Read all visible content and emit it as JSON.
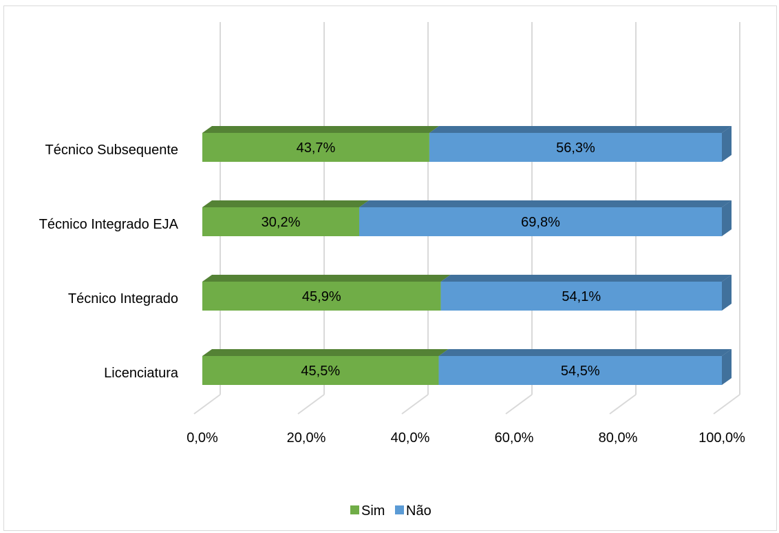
{
  "chart_data": {
    "type": "bar",
    "orientation": "horizontal",
    "stacked": true,
    "three_d": true,
    "categories": [
      "Licenciatura",
      "Técnico Integrado",
      "Técnico Integrado EJA",
      "Técnico Subsequente"
    ],
    "series": [
      {
        "name": "Sim",
        "values": [
          45.5,
          45.9,
          30.2,
          43.7
        ],
        "labels": [
          "45,5%",
          "45,9%",
          "30,2%",
          "43,7%"
        ],
        "color": "#70ad47",
        "top_color": "#548235"
      },
      {
        "name": "Não",
        "values": [
          54.5,
          54.1,
          69.8,
          56.3
        ],
        "labels": [
          "54,5%",
          "54,1%",
          "69,8%",
          "56,3%"
        ],
        "color": "#5b9bd5",
        "top_color": "#41719c"
      }
    ],
    "xlim": [
      0,
      100
    ],
    "xticks": [
      0,
      20,
      40,
      60,
      80,
      100
    ],
    "xtick_labels": [
      "0,0%",
      "20,0%",
      "40,0%",
      "60,0%",
      "80,0%",
      "100,0%"
    ],
    "grid": true,
    "legend_position": "bottom"
  }
}
